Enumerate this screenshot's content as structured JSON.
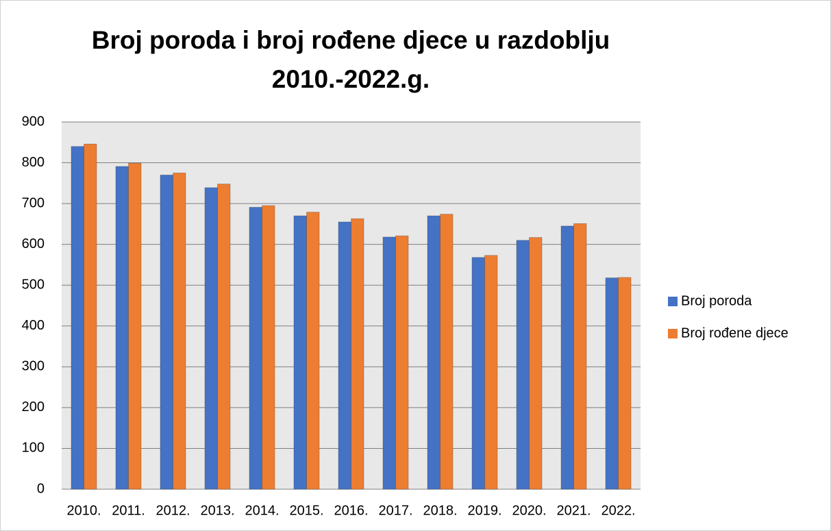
{
  "chart_data": {
    "type": "bar",
    "title": "Broj poroda i broj rođene djece u razdoblju 2010.-2022.g.",
    "categories": [
      "2010.",
      "2011.",
      "2012.",
      "2013.",
      "2014.",
      "2015.",
      "2016.",
      "2017.",
      "2018.",
      "2019.",
      "2020.",
      "2021.",
      "2022."
    ],
    "series": [
      {
        "name": "Broj poroda",
        "color": "#4472c4",
        "values": [
          840,
          791,
          770,
          739,
          691,
          670,
          655,
          618,
          670,
          568,
          610,
          645,
          518
        ]
      },
      {
        "name": "Broj rođene djece",
        "color": "#ed7d31",
        "values": [
          846,
          799,
          775,
          748,
          695,
          679,
          663,
          621,
          674,
          573,
          617,
          651,
          519
        ]
      }
    ],
    "ylim": [
      0,
      900
    ],
    "yticks": [
      0,
      100,
      200,
      300,
      400,
      500,
      600,
      700,
      800,
      900
    ],
    "grid": true,
    "legend": "right"
  }
}
